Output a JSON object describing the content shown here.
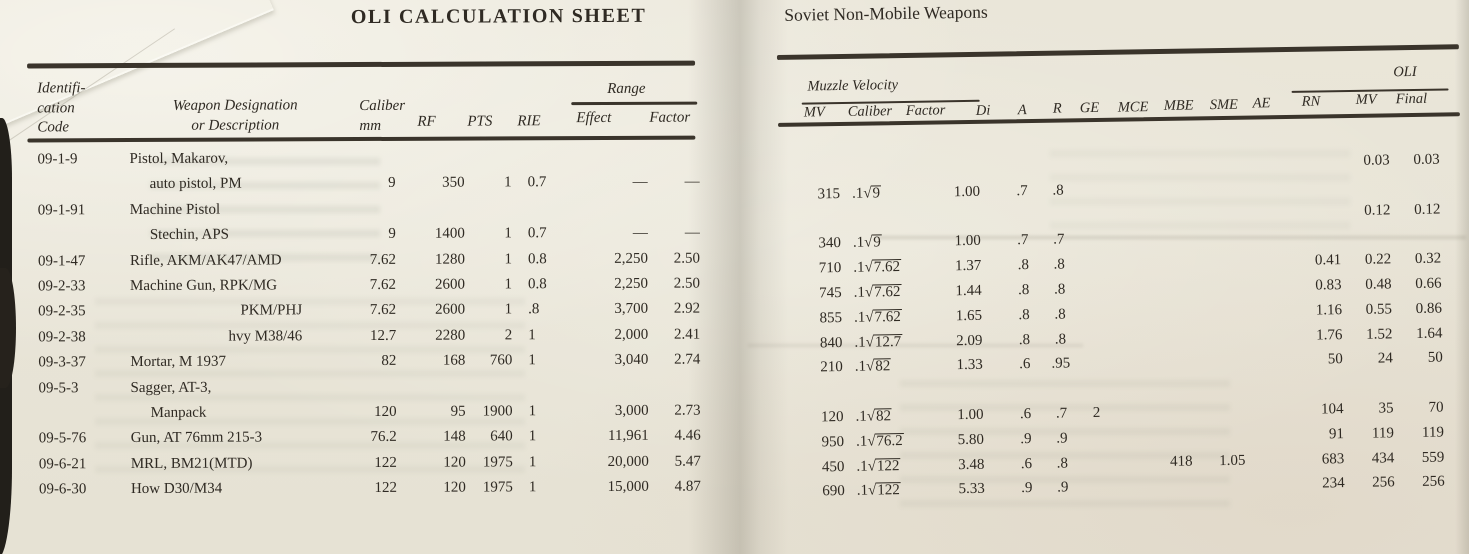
{
  "colors": {
    "paper": "#e9e5d8",
    "ink": "#2f2a23",
    "rule": "#3a342b"
  },
  "left_page": {
    "title": "OLI CALCULATION SHEET",
    "header": {
      "col_code": [
        "Identifi-",
        "cation",
        "Code"
      ],
      "col_weapon": [
        "Weapon Designation",
        "or Description"
      ],
      "col_caliber": [
        "Caliber",
        "mm"
      ],
      "col_rf": "RF",
      "col_pts": "PTS",
      "col_rie": "RIE",
      "group_range": "Range",
      "col_effect": "Effect",
      "col_factor": "Factor"
    },
    "lines": [
      {
        "code": "09-1-9",
        "name": "Pistol, Makarov,"
      },
      {
        "name": "auto pistol, PM",
        "indent": "sub",
        "caliber": "9",
        "rf": "350",
        "pts": "1",
        "rie": "0.7",
        "effect": "—",
        "factor": "—"
      },
      {
        "code": "09-1-91",
        "name": "Machine Pistol"
      },
      {
        "name": "Stechin, APS",
        "indent": "sub",
        "caliber": "9",
        "rf": "1400",
        "pts": "1",
        "rie": "0.7",
        "effect": "—",
        "factor": "—"
      },
      {
        "code": "09-1-47",
        "name": "Rifle, AKM/AK47/AMD",
        "caliber": "7.62",
        "rf": "1280",
        "pts": "1",
        "rie": "0.8",
        "effect": "2,250",
        "factor": "2.50"
      },
      {
        "code": "09-2-33",
        "name": "Machine Gun, RPK/MG",
        "caliber": "7.62",
        "rf": "2600",
        "pts": "1",
        "rie": "0.8",
        "effect": "2,250",
        "factor": "2.50"
      },
      {
        "code": "09-2-35",
        "name": "PKM/PHJ",
        "indent": "deep",
        "caliber": "7.62",
        "rf": "2600",
        "pts": "1",
        "rie": ".8",
        "effect": "3,700",
        "factor": "2.92"
      },
      {
        "code": "09-2-38",
        "name": "hvy M38/46",
        "indent": "deep",
        "caliber": "12.7",
        "rf": "2280",
        "pts": "2",
        "rie": "1",
        "effect": "2,000",
        "factor": "2.41"
      },
      {
        "code": "09-3-37",
        "name": "Mortar, M 1937",
        "caliber": "82",
        "rf": "168",
        "pts": "760",
        "rie": "1",
        "effect": "3,040",
        "factor": "2.74"
      },
      {
        "code": "09-5-3",
        "name": "Sagger, AT-3,"
      },
      {
        "name": "Manpack",
        "indent": "sub",
        "caliber": "120",
        "rf": "95",
        "pts": "1900",
        "rie": "1",
        "effect": "3,000",
        "factor": "2.73"
      },
      {
        "code": "09-5-76",
        "name": "Gun, AT 76mm 215-3",
        "caliber": "76.2",
        "rf": "148",
        "pts": "640",
        "rie": "1",
        "effect": "11,961",
        "factor": "4.46"
      },
      {
        "code": "09-6-21",
        "name": "MRL, BM21(MTD)",
        "caliber": "122",
        "rf": "120",
        "pts": "1975",
        "rie": "1",
        "effect": "20,000",
        "factor": "5.47"
      },
      {
        "code": "09-6-30",
        "name": "How D30/M34",
        "caliber": "122",
        "rf": "120",
        "pts": "1975",
        "rie": "1",
        "effect": "15,000",
        "factor": "4.87"
      }
    ]
  },
  "right_page": {
    "title": "Soviet Non-Mobile Weapons",
    "header": {
      "group_mv": "Muzzle Velocity",
      "col_mv": "MV",
      "col_caliber": "Caliber",
      "col_factor": "Factor",
      "col_di": "Di",
      "col_a": "A",
      "col_r": "R",
      "col_ge": "GE",
      "col_mce": "MCE",
      "col_mbe": "MBE",
      "col_sme": "SME",
      "col_ae": "AE",
      "group_oli": "OLI",
      "col_rn": "RN",
      "col_mv2": "MV",
      "col_final": "Final"
    },
    "lines": [
      {
        "olimv": "0.03",
        "final": "0.03"
      },
      {
        "mv": "315",
        "cal": ".1√9",
        "factor": "1.00",
        "a": ".7",
        "r": ".8"
      },
      {
        "olimv": "0.12",
        "final": "0.12"
      },
      {
        "mv": "340",
        "cal": ".1√9",
        "factor": "1.00",
        "a": ".7",
        "r": ".7"
      },
      {
        "mv": "710",
        "cal": ".1√7.62",
        "factor": "1.37",
        "a": ".8",
        "r": ".8",
        "rn": "0.41",
        "olimv": "0.22",
        "final": "0.32"
      },
      {
        "mv": "745",
        "cal": ".1√7.62",
        "factor": "1.44",
        "a": ".8",
        "r": ".8",
        "rn": "0.83",
        "olimv": "0.48",
        "final": "0.66"
      },
      {
        "mv": "855",
        "cal": ".1√7.62",
        "factor": "1.65",
        "a": ".8",
        "r": ".8",
        "rn": "1.16",
        "olimv": "0.55",
        "final": "0.86"
      },
      {
        "mv": "840",
        "cal": ".1√12.7",
        "factor": "2.09",
        "a": ".8",
        "r": ".8",
        "rn": "1.76",
        "olimv": "1.52",
        "final": "1.64"
      },
      {
        "mv": "210",
        "cal": ".1√82",
        "factor": "1.33",
        "a": ".6",
        "r": ".95",
        "rn": "50",
        "olimv": "24",
        "final": "50"
      },
      {},
      {
        "mv": "120",
        "cal": ".1√82",
        "factor": "1.00",
        "a": ".6",
        "r": ".7",
        "ge": "2",
        "rn": "104",
        "olimv": "35",
        "final": "70"
      },
      {
        "mv": "950",
        "cal": ".1√76.2",
        "factor": "5.80",
        "a": ".9",
        "r": ".9",
        "rn": "91",
        "olimv": "119",
        "final": "119"
      },
      {
        "mv": "450",
        "cal": ".1√122",
        "factor": "3.48",
        "a": ".6",
        "r": ".8",
        "mbe": "418",
        "sme": "1.05",
        "rn": "683",
        "olimv": "434",
        "final": "559"
      },
      {
        "mv": "690",
        "cal": ".1√122",
        "factor": "5.33",
        "a": ".9",
        "r": ".9",
        "rn": "234",
        "olimv": "256",
        "final": "256"
      }
    ]
  }
}
